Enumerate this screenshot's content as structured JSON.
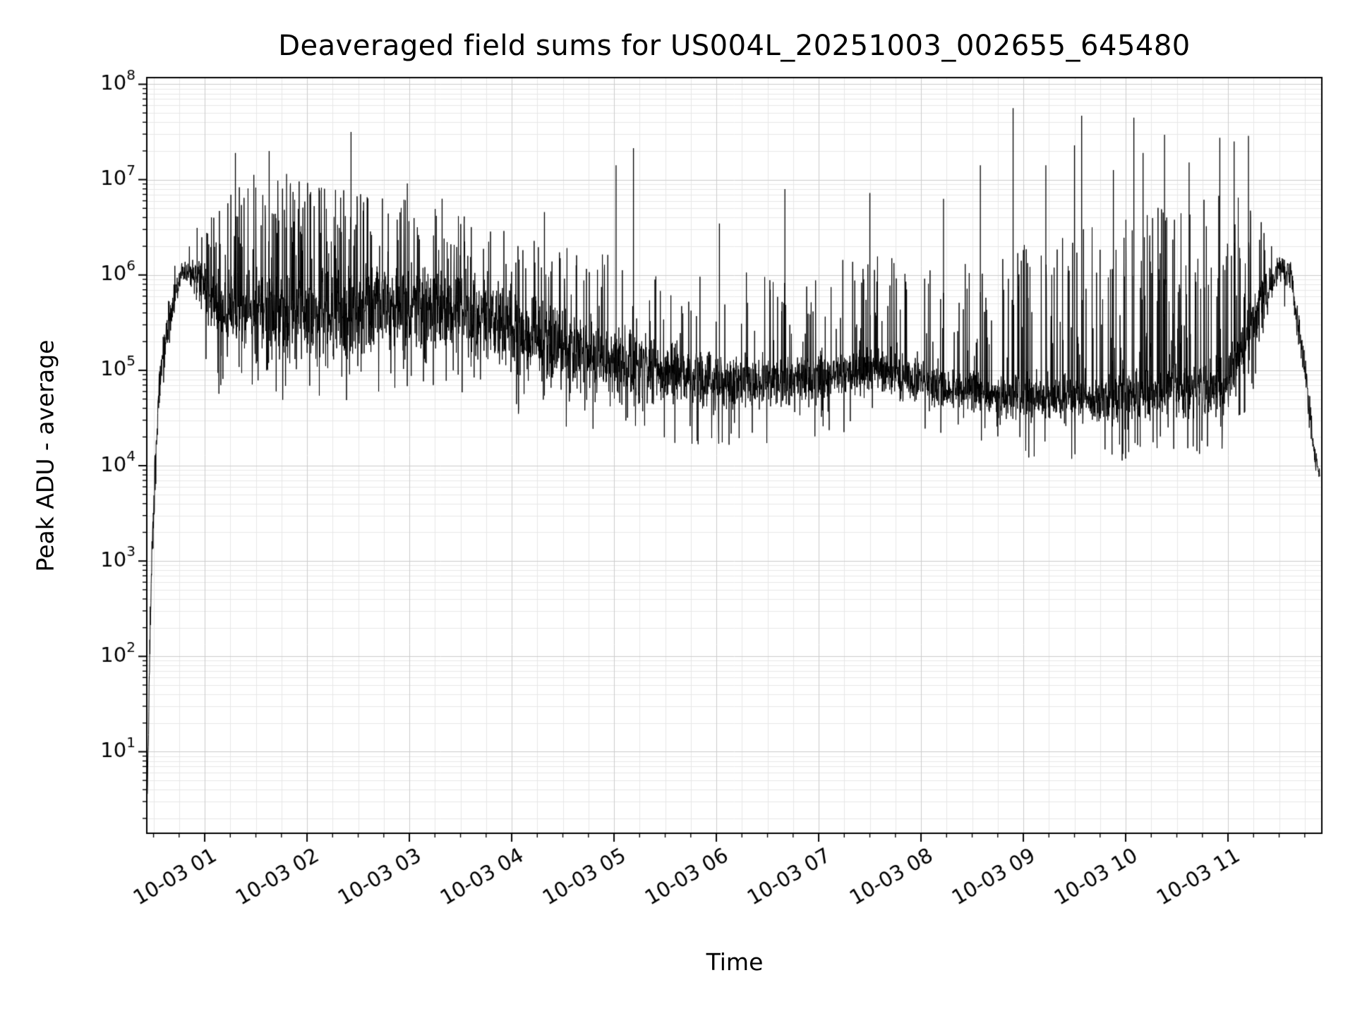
{
  "chart_data": {
    "type": "line",
    "title": "Deaveraged field sums for US004L_20251003_002655_645480",
    "xlabel": "Time",
    "ylabel": "Peak ADU - average",
    "yscale": "log",
    "ylim_log": [
      0.145,
      8.07
    ],
    "ytick_exponents": [
      1,
      2,
      3,
      4,
      5,
      6,
      7,
      8
    ],
    "xlim_hours": [
      0.434,
      11.917
    ],
    "xticks": [
      {
        "t": 1,
        "label": "10-03 01"
      },
      {
        "t": 2,
        "label": "10-03 02"
      },
      {
        "t": 3,
        "label": "10-03 03"
      },
      {
        "t": 4,
        "label": "10-03 04"
      },
      {
        "t": 5,
        "label": "10-03 05"
      },
      {
        "t": 6,
        "label": "10-03 06"
      },
      {
        "t": 7,
        "label": "10-03 07"
      },
      {
        "t": 8,
        "label": "10-03 08"
      },
      {
        "t": 9,
        "label": "10-03 09"
      },
      {
        "t": 10,
        "label": "10-03 10"
      },
      {
        "t": 11,
        "label": "10-03 11"
      }
    ],
    "x_minor_step_hours": 0.25,
    "grid": true,
    "legend": "none",
    "line_color": "#000000",
    "grid_major_color": "#cccccc",
    "grid_minor_color": "#e7e7e7",
    "axis_color": "#000000",
    "series_seed": 20251003,
    "time_range_hours": [
      0.44,
      11.9
    ],
    "points_count": 5000,
    "envelope_fields": [
      "t_hours",
      "base_log10",
      "halfrange_log10",
      "spike_probability",
      "spike_max_log10"
    ],
    "envelope": [
      [
        0.44,
        0.6,
        0.05,
        0.0,
        1.0
      ],
      [
        0.48,
        3.0,
        0.4,
        0.0,
        3.5
      ],
      [
        0.55,
        4.8,
        0.25,
        0.0,
        5.2
      ],
      [
        0.65,
        5.55,
        0.25,
        0.02,
        6.2
      ],
      [
        0.78,
        6.05,
        0.12,
        0.02,
        6.35
      ],
      [
        0.95,
        5.95,
        0.3,
        0.06,
        6.6
      ],
      [
        1.15,
        5.6,
        0.55,
        0.1,
        6.9
      ],
      [
        1.6,
        5.55,
        0.6,
        0.12,
        7.0
      ],
      [
        2.1,
        5.55,
        0.6,
        0.12,
        7.0
      ],
      [
        2.6,
        5.65,
        0.55,
        0.1,
        6.9
      ],
      [
        3.1,
        5.7,
        0.5,
        0.09,
        6.8
      ],
      [
        3.6,
        5.55,
        0.5,
        0.08,
        6.6
      ],
      [
        4.1,
        5.4,
        0.55,
        0.08,
        6.4
      ],
      [
        4.6,
        5.2,
        0.5,
        0.06,
        6.3
      ],
      [
        5.1,
        5.05,
        0.45,
        0.06,
        6.2
      ],
      [
        5.6,
        4.95,
        0.4,
        0.05,
        6.0
      ],
      [
        6.1,
        4.85,
        0.35,
        0.05,
        6.0
      ],
      [
        6.6,
        4.85,
        0.3,
        0.05,
        6.1
      ],
      [
        7.1,
        4.95,
        0.28,
        0.08,
        6.2
      ],
      [
        7.6,
        5.0,
        0.28,
        0.1,
        6.2
      ],
      [
        8.1,
        4.85,
        0.25,
        0.08,
        6.2
      ],
      [
        8.6,
        4.75,
        0.25,
        0.1,
        6.3
      ],
      [
        9.1,
        4.7,
        0.28,
        0.13,
        6.4
      ],
      [
        9.6,
        4.7,
        0.3,
        0.14,
        6.5
      ],
      [
        10.1,
        4.72,
        0.32,
        0.16,
        6.6
      ],
      [
        10.6,
        4.78,
        0.36,
        0.16,
        6.9
      ],
      [
        11.0,
        4.85,
        0.4,
        0.14,
        7.0
      ],
      [
        11.3,
        5.6,
        0.4,
        0.08,
        6.7
      ],
      [
        11.5,
        6.1,
        0.15,
        0.02,
        6.4
      ],
      [
        11.62,
        5.95,
        0.18,
        0.0,
        6.1
      ],
      [
        11.75,
        5.0,
        0.25,
        0.0,
        5.3
      ],
      [
        11.85,
        4.1,
        0.15,
        0.0,
        4.3
      ],
      [
        11.9,
        3.9,
        0.1,
        0.0,
        4.0
      ]
    ],
    "major_spikes_fields": [
      "t_hours",
      "peak_log10"
    ],
    "major_spikes": [
      [
        1.3,
        7.28
      ],
      [
        1.48,
        7.05
      ],
      [
        1.63,
        7.3
      ],
      [
        1.8,
        7.06
      ],
      [
        2.43,
        7.5
      ],
      [
        2.98,
        6.96
      ],
      [
        3.32,
        6.8
      ],
      [
        4.32,
        6.66
      ],
      [
        5.02,
        7.15
      ],
      [
        5.19,
        7.33
      ],
      [
        6.03,
        6.54
      ],
      [
        6.67,
        6.9
      ],
      [
        7.5,
        6.86
      ],
      [
        8.22,
        6.8
      ],
      [
        8.58,
        7.15
      ],
      [
        8.9,
        7.75
      ],
      [
        9.22,
        7.15
      ],
      [
        9.5,
        7.36
      ],
      [
        9.57,
        7.67
      ],
      [
        9.88,
        7.1
      ],
      [
        10.08,
        7.65
      ],
      [
        10.17,
        7.28
      ],
      [
        10.38,
        7.47
      ],
      [
        10.62,
        7.18
      ],
      [
        10.92,
        7.44
      ],
      [
        11.06,
        7.4
      ],
      [
        11.2,
        7.46
      ]
    ],
    "start_value_log10": 0.6,
    "end_value_log10": 3.9
  }
}
